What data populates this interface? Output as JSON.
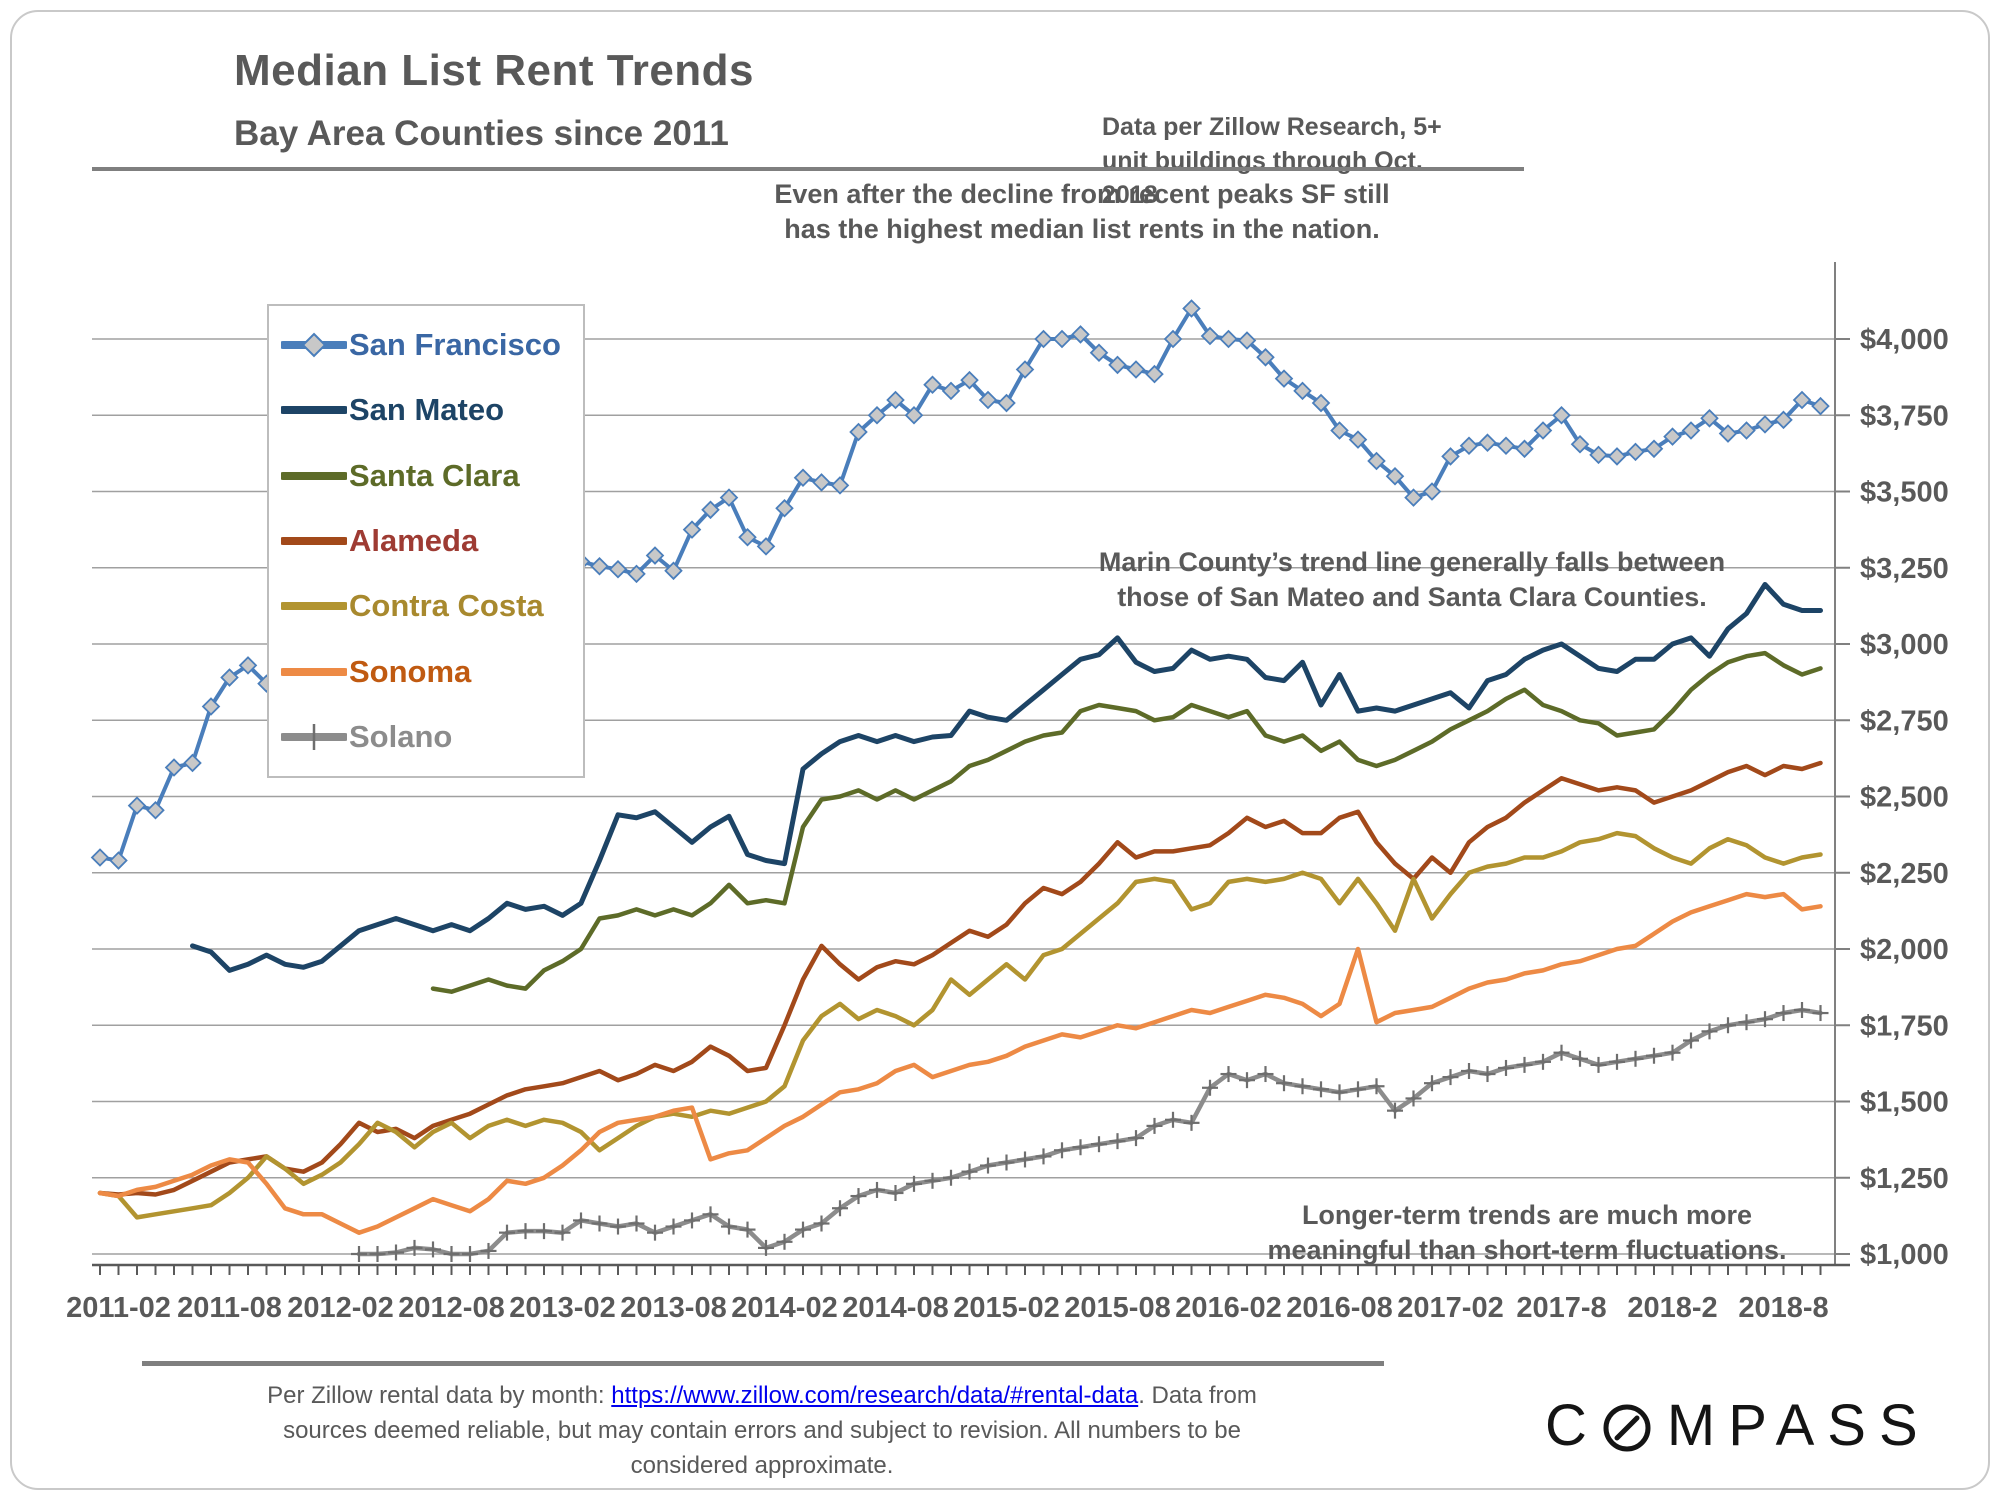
{
  "header": {
    "title": "Median List Rent Trends",
    "subtitle": "Bay Area Counties since 2011",
    "note_line1": "Data per Zillow Research, 5+",
    "note_line2": "unit buildings through Oct. 2018"
  },
  "annotations": {
    "sf_line1": "Even after the decline from recent peaks SF still",
    "sf_line2": "has the highest median list rents in the nation.",
    "marin_line1": "Marin County’s trend line generally falls between",
    "marin_line2": "those of San Mateo and Santa Clara Counties.",
    "longterm_line1": "Longer-term trends are much more",
    "longterm_line2": "meaningful than short-term fluctuations."
  },
  "footer": {
    "line1_pre": "Per Zillow rental data by month: ",
    "link_text": "https://www.zillow.com/research/data/#rental-data",
    "line1_post": ". Data from",
    "line2": "sources deemed reliable, but may contain errors and subject to revision. All numbers to be",
    "line3": "considered approximate.",
    "logo_left": "C",
    "logo_right": "MPASS"
  },
  "chart_data": {
    "type": "line",
    "x_start": "2011-01",
    "x_end": "2018-10",
    "frequency": "monthly",
    "n_points": 94,
    "grid": "horizontal-only",
    "legend_position": "upper-left-box",
    "ylim": [
      1000,
      4250
    ],
    "y_axis_side": "right",
    "y_ticks": [
      {
        "value": 4000,
        "label": "$4,000"
      },
      {
        "value": 3750,
        "label": "$3,750"
      },
      {
        "value": 3500,
        "label": "$3,500"
      },
      {
        "value": 3250,
        "label": "$3,250"
      },
      {
        "value": 3000,
        "label": "$3,000"
      },
      {
        "value": 2750,
        "label": "$2,750"
      },
      {
        "value": 2500,
        "label": "$2,500"
      },
      {
        "value": 2250,
        "label": "$2,250"
      },
      {
        "value": 2000,
        "label": "$2,000"
      },
      {
        "value": 1750,
        "label": "$1,750"
      },
      {
        "value": 1500,
        "label": "$1,500"
      },
      {
        "value": 1250,
        "label": "$1,250"
      },
      {
        "value": 1000,
        "label": "$1,000"
      }
    ],
    "x_ticks": [
      {
        "index": 1,
        "label": "2011-02"
      },
      {
        "index": 7,
        "label": "2011-08"
      },
      {
        "index": 13,
        "label": "2012-02"
      },
      {
        "index": 19,
        "label": "2012-08"
      },
      {
        "index": 25,
        "label": "2013-02"
      },
      {
        "index": 31,
        "label": "2013-08"
      },
      {
        "index": 37,
        "label": "2014-02"
      },
      {
        "index": 43,
        "label": "2014-08"
      },
      {
        "index": 49,
        "label": "2015-02"
      },
      {
        "index": 55,
        "label": "2015-08"
      },
      {
        "index": 61,
        "label": "2016-02"
      },
      {
        "index": 67,
        "label": "2016-08"
      },
      {
        "index": 73,
        "label": "2017-02"
      },
      {
        "index": 79,
        "label": "2017-8"
      },
      {
        "index": 85,
        "label": "2018-2"
      },
      {
        "index": 91,
        "label": "2018-8"
      }
    ],
    "series": [
      {
        "name": "San Francisco",
        "line_color": "#4a7ebb",
        "label_color": "#3a67a4",
        "marker": "diamond",
        "marker_fill": "#c8c8c8",
        "line_width": 4,
        "values": [
          2300,
          2290,
          2470,
          2455,
          2595,
          2610,
          2795,
          2890,
          2930,
          2870,
          2880,
          2900,
          2910,
          2930,
          2950,
          2960,
          2950,
          2940,
          2950,
          2960,
          2980,
          3010,
          3050,
          3010,
          3000,
          3290,
          3270,
          3255,
          3245,
          3230,
          3290,
          3240,
          3375,
          3440,
          3480,
          3350,
          3320,
          3445,
          3545,
          3530,
          3520,
          3695,
          3750,
          3800,
          3750,
          3850,
          3830,
          3865,
          3800,
          3790,
          3900,
          4000,
          4000,
          4015,
          3955,
          3915,
          3900,
          3885,
          4000,
          4100,
          4010,
          4000,
          3995,
          3940,
          3870,
          3830,
          3790,
          3700,
          3670,
          3600,
          3550,
          3480,
          3500,
          3615,
          3650,
          3660,
          3650,
          3640,
          3700,
          3750,
          3655,
          3620,
          3615,
          3630,
          3640,
          3680,
          3700,
          3740,
          3690,
          3700,
          3720,
          3735,
          3800,
          3780
        ]
      },
      {
        "name": "San Mateo",
        "line_color": "#1d4466",
        "label_color": "#1d4466",
        "marker": "none",
        "line_width": 5,
        "values": [
          null,
          null,
          null,
          null,
          null,
          2010,
          1990,
          1930,
          1950,
          1980,
          1950,
          1940,
          1960,
          2010,
          2060,
          2080,
          2100,
          2080,
          2060,
          2080,
          2060,
          2100,
          2150,
          2130,
          2140,
          2110,
          2150,
          2290,
          2440,
          2430,
          2450,
          2400,
          2350,
          2400,
          2435,
          2310,
          2290,
          2280,
          2590,
          2640,
          2680,
          2700,
          2680,
          2700,
          2680,
          2695,
          2700,
          2780,
          2760,
          2750,
          2800,
          2850,
          2900,
          2950,
          2965,
          3020,
          2940,
          2910,
          2920,
          2980,
          2950,
          2960,
          2950,
          2890,
          2880,
          2940,
          2800,
          2900,
          2780,
          2790,
          2780,
          2800,
          2820,
          2840,
          2790,
          2880,
          2900,
          2950,
          2980,
          3000,
          2960,
          2920,
          2910,
          2950,
          2950,
          3000,
          3020,
          2960,
          3050,
          3100,
          3195,
          3130,
          3110,
          3110
        ]
      },
      {
        "name": "Santa Clara",
        "line_color": "#5d6b28",
        "label_color": "#5d6b28",
        "marker": "none",
        "line_width": 4.5,
        "values": [
          null,
          null,
          null,
          null,
          null,
          null,
          null,
          null,
          null,
          null,
          null,
          null,
          null,
          null,
          null,
          null,
          null,
          null,
          1870,
          1860,
          1880,
          1900,
          1880,
          1870,
          1930,
          1960,
          2000,
          2100,
          2110,
          2130,
          2110,
          2130,
          2110,
          2150,
          2210,
          2150,
          2160,
          2150,
          2400,
          2490,
          2500,
          2520,
          2490,
          2520,
          2490,
          2520,
          2550,
          2600,
          2620,
          2650,
          2680,
          2700,
          2710,
          2780,
          2800,
          2790,
          2780,
          2750,
          2760,
          2800,
          2780,
          2760,
          2780,
          2700,
          2680,
          2700,
          2650,
          2680,
          2620,
          2600,
          2620,
          2650,
          2680,
          2720,
          2750,
          2780,
          2820,
          2850,
          2800,
          2780,
          2750,
          2740,
          2700,
          2710,
          2720,
          2780,
          2850,
          2900,
          2940,
          2960,
          2970,
          2930,
          2900,
          2920
        ]
      },
      {
        "name": "Alameda",
        "line_color": "#a2491a",
        "label_color": "#9e3b33",
        "marker": "none",
        "line_width": 4.5,
        "values": [
          1200,
          1195,
          1200,
          1195,
          1210,
          1240,
          1270,
          1300,
          1310,
          1320,
          1280,
          1270,
          1300,
          1360,
          1430,
          1400,
          1410,
          1380,
          1420,
          1440,
          1460,
          1490,
          1520,
          1540,
          1550,
          1560,
          1580,
          1600,
          1570,
          1590,
          1620,
          1600,
          1630,
          1680,
          1650,
          1600,
          1610,
          1750,
          1900,
          2010,
          1950,
          1900,
          1940,
          1960,
          1950,
          1980,
          2020,
          2060,
          2040,
          2080,
          2150,
          2200,
          2180,
          2220,
          2280,
          2350,
          2300,
          2320,
          2320,
          2330,
          2340,
          2380,
          2430,
          2400,
          2420,
          2380,
          2380,
          2430,
          2450,
          2350,
          2280,
          2230,
          2300,
          2250,
          2350,
          2400,
          2430,
          2480,
          2520,
          2560,
          2540,
          2520,
          2530,
          2520,
          2480,
          2500,
          2520,
          2550,
          2580,
          2600,
          2570,
          2600,
          2590,
          2610
        ]
      },
      {
        "name": "Contra Costa",
        "line_color": "#b29430",
        "label_color": "#a8892e",
        "marker": "none",
        "line_width": 4.5,
        "values": [
          1200,
          1190,
          1120,
          1130,
          1140,
          1150,
          1160,
          1200,
          1250,
          1320,
          1280,
          1230,
          1260,
          1300,
          1360,
          1430,
          1400,
          1350,
          1400,
          1430,
          1380,
          1420,
          1440,
          1420,
          1440,
          1430,
          1400,
          1340,
          1380,
          1420,
          1450,
          1460,
          1450,
          1470,
          1460,
          1480,
          1500,
          1550,
          1700,
          1780,
          1820,
          1770,
          1800,
          1780,
          1750,
          1800,
          1900,
          1850,
          1900,
          1950,
          1900,
          1980,
          2000,
          2050,
          2100,
          2150,
          2220,
          2230,
          2220,
          2130,
          2150,
          2220,
          2230,
          2220,
          2230,
          2250,
          2230,
          2150,
          2230,
          2150,
          2060,
          2230,
          2100,
          2180,
          2250,
          2270,
          2280,
          2300,
          2300,
          2320,
          2350,
          2360,
          2380,
          2370,
          2330,
          2300,
          2280,
          2330,
          2360,
          2340,
          2300,
          2280,
          2300,
          2310
        ]
      },
      {
        "name": "Sonoma",
        "line_color": "#ed8a45",
        "label_color": "#c05a11",
        "marker": "none",
        "line_width": 4.5,
        "values": [
          1200,
          1190,
          1210,
          1220,
          1240,
          1260,
          1290,
          1310,
          1300,
          1230,
          1150,
          1130,
          1130,
          1100,
          1070,
          1090,
          1120,
          1150,
          1180,
          1160,
          1140,
          1180,
          1240,
          1230,
          1250,
          1290,
          1340,
          1400,
          1430,
          1440,
          1450,
          1470,
          1480,
          1310,
          1330,
          1340,
          1380,
          1420,
          1450,
          1490,
          1530,
          1540,
          1560,
          1600,
          1620,
          1580,
          1600,
          1620,
          1630,
          1650,
          1680,
          1700,
          1720,
          1710,
          1730,
          1750,
          1740,
          1760,
          1780,
          1800,
          1790,
          1810,
          1830,
          1850,
          1840,
          1820,
          1780,
          1820,
          2000,
          1760,
          1790,
          1800,
          1810,
          1840,
          1870,
          1890,
          1900,
          1920,
          1930,
          1950,
          1960,
          1980,
          2000,
          2010,
          2050,
          2090,
          2120,
          2140,
          2160,
          2180,
          2170,
          2180,
          2130,
          2140
        ]
      },
      {
        "name": "Solano",
        "line_color": "#8c8c8c",
        "label_color": "#8c8c8c",
        "marker": "plus",
        "line_width": 4.5,
        "values": [
          null,
          null,
          null,
          null,
          null,
          null,
          null,
          null,
          null,
          null,
          null,
          null,
          null,
          null,
          1000,
          1000,
          1005,
          1020,
          1015,
          1000,
          1000,
          1010,
          1070,
          1075,
          1075,
          1070,
          1110,
          1100,
          1090,
          1100,
          1070,
          1090,
          1110,
          1130,
          1090,
          1080,
          1020,
          1040,
          1080,
          1100,
          1150,
          1190,
          1210,
          1200,
          1230,
          1240,
          1250,
          1270,
          1290,
          1300,
          1310,
          1320,
          1340,
          1350,
          1360,
          1370,
          1380,
          1420,
          1440,
          1430,
          1545,
          1590,
          1570,
          1590,
          1560,
          1550,
          1540,
          1530,
          1540,
          1550,
          1470,
          1510,
          1560,
          1580,
          1600,
          1590,
          1610,
          1620,
          1630,
          1660,
          1640,
          1620,
          1630,
          1640,
          1650,
          1660,
          1700,
          1730,
          1750,
          1760,
          1770,
          1790,
          1800,
          1790
        ]
      }
    ]
  }
}
